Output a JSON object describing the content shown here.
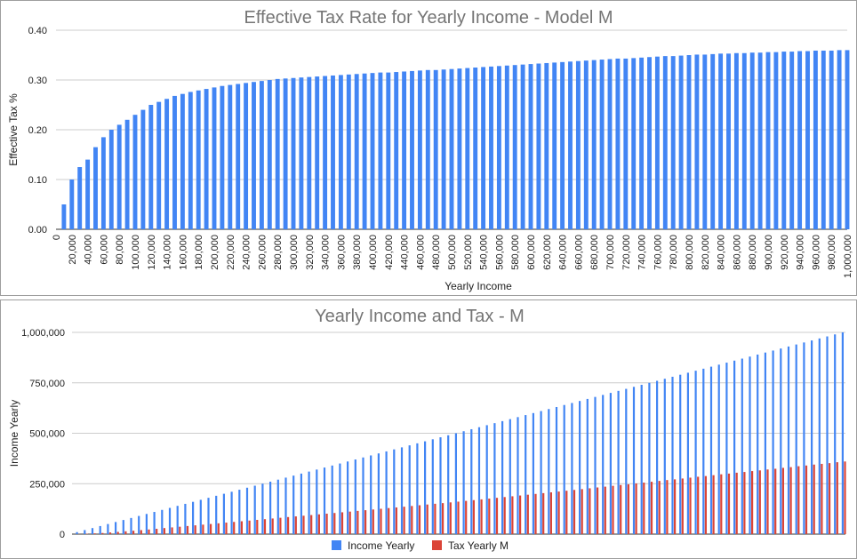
{
  "colors": {
    "income": "#4285f4",
    "tax": "#db4437",
    "grid": "#cccccc",
    "baseline": "#333333"
  },
  "chart_data": [
    {
      "type": "bar",
      "title": "Effective Tax Rate for Yearly Income - Model M",
      "xlabel": "Yearly Income",
      "ylabel": "Effective Tax %",
      "ylim": [
        0,
        0.4
      ],
      "yticks": [
        "0.00",
        "0.10",
        "0.20",
        "0.30",
        "0.40"
      ],
      "xticks": [
        "0",
        "20,000",
        "40,000",
        "60,000",
        "80,000",
        "100,000",
        "120,000",
        "140,000",
        "160,000",
        "180,000",
        "200,000",
        "220,000",
        "240,000",
        "260,000",
        "280,000",
        "300,000",
        "320,000",
        "340,000",
        "360,000",
        "380,000",
        "400,000",
        "420,000",
        "440,000",
        "460,000",
        "480,000",
        "500,000",
        "520,000",
        "540,000",
        "560,000",
        "580,000",
        "600,000",
        "620,000",
        "640,000",
        "660,000",
        "680,000",
        "700,000",
        "720,000",
        "740,000",
        "760,000",
        "780,000",
        "800,000",
        "820,000",
        "840,000",
        "860,000",
        "880,000",
        "900,000",
        "920,000",
        "940,000",
        "960,000",
        "980,000",
        "1,000,000"
      ],
      "x": [
        10000,
        20000,
        30000,
        40000,
        50000,
        60000,
        70000,
        80000,
        90000,
        100000,
        110000,
        120000,
        130000,
        140000,
        150000,
        160000,
        170000,
        180000,
        190000,
        200000,
        210000,
        220000,
        230000,
        240000,
        250000,
        260000,
        270000,
        280000,
        290000,
        300000,
        310000,
        320000,
        330000,
        340000,
        350000,
        360000,
        370000,
        380000,
        390000,
        400000,
        410000,
        420000,
        430000,
        440000,
        450000,
        460000,
        470000,
        480000,
        490000,
        500000,
        510000,
        520000,
        530000,
        540000,
        550000,
        560000,
        570000,
        580000,
        590000,
        600000,
        610000,
        620000,
        630000,
        640000,
        650000,
        660000,
        670000,
        680000,
        690000,
        700000,
        710000,
        720000,
        730000,
        740000,
        750000,
        760000,
        770000,
        780000,
        790000,
        800000,
        810000,
        820000,
        830000,
        840000,
        850000,
        860000,
        870000,
        880000,
        890000,
        900000,
        910000,
        920000,
        930000,
        940000,
        950000,
        960000,
        970000,
        980000,
        990000,
        1000000
      ],
      "values": [
        0.05,
        0.1,
        0.125,
        0.14,
        0.165,
        0.185,
        0.2,
        0.21,
        0.22,
        0.23,
        0.24,
        0.25,
        0.256,
        0.262,
        0.268,
        0.272,
        0.276,
        0.279,
        0.282,
        0.285,
        0.288,
        0.29,
        0.292,
        0.294,
        0.296,
        0.298,
        0.3,
        0.302,
        0.303,
        0.304,
        0.305,
        0.306,
        0.307,
        0.308,
        0.309,
        0.31,
        0.311,
        0.312,
        0.313,
        0.314,
        0.315,
        0.315,
        0.316,
        0.317,
        0.318,
        0.319,
        0.32,
        0.32,
        0.321,
        0.322,
        0.323,
        0.324,
        0.325,
        0.326,
        0.327,
        0.328,
        0.329,
        0.33,
        0.331,
        0.332,
        0.333,
        0.334,
        0.335,
        0.336,
        0.337,
        0.338,
        0.339,
        0.34,
        0.341,
        0.342,
        0.343,
        0.343,
        0.344,
        0.345,
        0.346,
        0.347,
        0.348,
        0.348,
        0.349,
        0.35,
        0.351,
        0.351,
        0.352,
        0.353,
        0.353,
        0.354,
        0.354,
        0.355,
        0.355,
        0.356,
        0.356,
        0.357,
        0.357,
        0.358,
        0.358,
        0.359,
        0.359,
        0.359,
        0.36,
        0.36
      ],
      "grid": true
    },
    {
      "type": "bar",
      "title": "Yearly Income and Tax - M",
      "ylabel": "Income Yearly",
      "ylim": [
        0,
        1000000
      ],
      "yticks": [
        "0",
        "250,000",
        "500,000",
        "750,000",
        "1,000,000"
      ],
      "legend_position": "bottom",
      "grid": true,
      "series": [
        {
          "name": "Income Yearly",
          "values": [
            10000,
            20000,
            30000,
            40000,
            50000,
            60000,
            70000,
            80000,
            90000,
            100000,
            110000,
            120000,
            130000,
            140000,
            150000,
            160000,
            170000,
            180000,
            190000,
            200000,
            210000,
            220000,
            230000,
            240000,
            250000,
            260000,
            270000,
            280000,
            290000,
            300000,
            310000,
            320000,
            330000,
            340000,
            350000,
            360000,
            370000,
            380000,
            390000,
            400000,
            410000,
            420000,
            430000,
            440000,
            450000,
            460000,
            470000,
            480000,
            490000,
            500000,
            510000,
            520000,
            530000,
            540000,
            550000,
            560000,
            570000,
            580000,
            590000,
            600000,
            610000,
            620000,
            630000,
            640000,
            650000,
            660000,
            670000,
            680000,
            690000,
            700000,
            710000,
            720000,
            730000,
            740000,
            750000,
            760000,
            770000,
            780000,
            790000,
            800000,
            810000,
            820000,
            830000,
            840000,
            850000,
            860000,
            870000,
            880000,
            890000,
            900000,
            910000,
            920000,
            930000,
            940000,
            950000,
            960000,
            970000,
            980000,
            990000,
            1000000
          ]
        },
        {
          "name": "Tax Yearly M",
          "values": [
            500,
            2000,
            3750,
            5600,
            8250,
            11100,
            14000,
            16800,
            19800,
            23000,
            26400,
            30000,
            33280,
            36680,
            40200,
            43520,
            46920,
            50220,
            53580,
            57000,
            60480,
            63800,
            67160,
            70560,
            74000,
            77480,
            81000,
            84560,
            87870,
            91200,
            94550,
            97920,
            101310,
            104720,
            108150,
            111600,
            115070,
            118560,
            122070,
            125600,
            129150,
            132300,
            135880,
            139480,
            143100,
            146740,
            150400,
            153600,
            157290,
            161000,
            164730,
            168480,
            172250,
            176040,
            179850,
            183680,
            187530,
            191400,
            195290,
            199200,
            203130,
            207080,
            211050,
            215040,
            219050,
            223080,
            227130,
            231200,
            235290,
            239400,
            243530,
            246960,
            251120,
            255300,
            259500,
            263720,
            267960,
            271440,
            275710,
            280000,
            284310,
            287820,
            292160,
            296520,
            300050,
            304440,
            307980,
            312400,
            315950,
            320400,
            323960,
            328440,
            332010,
            336520,
            340100,
            344640,
            348230,
            351820,
            356400,
            360000
          ]
        }
      ]
    }
  ]
}
